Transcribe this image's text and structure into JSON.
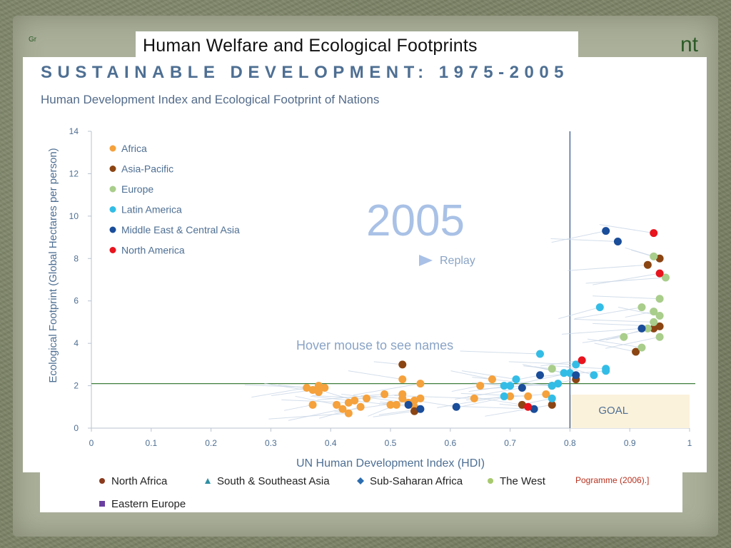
{
  "slide": {
    "title": "Human Welfare and Ecological Footprints",
    "bg_small_text": "Gr",
    "bg_right_fragment": "nt"
  },
  "chart_data": {
    "type": "scatter",
    "title": "SUSTAINABLE DEVELOPMENT: 1975-2005",
    "subtitle": "Human Development Index and Ecological Footprint of Nations",
    "xlabel": "UN Human Development Index (HDI)",
    "ylabel": "Ecological Footprint (Global Hectares per person)",
    "xlim": [
      0,
      1
    ],
    "ylim": [
      0,
      14
    ],
    "x_ticks": [
      "0",
      "0.1",
      "0.2",
      "0.3",
      "0.4",
      "0.5",
      "0.6",
      "0.7",
      "0.8",
      "0.9",
      "1"
    ],
    "y_ticks": [
      "0",
      "2",
      "4",
      "6",
      "8",
      "10",
      "12",
      "14"
    ],
    "year_label": "2005",
    "replay_label": "Replay",
    "hover_hint": "Hover mouse to see names",
    "goal_label": "GOAL",
    "goal_lines": {
      "hdi": 0.8,
      "footprint": 2.1
    },
    "series": [
      {
        "name": "Africa",
        "color": "#f5a13c",
        "points": [
          [
            0.36,
            1.9
          ],
          [
            0.37,
            1.8
          ],
          [
            0.38,
            1.7
          ],
          [
            0.38,
            2.0
          ],
          [
            0.39,
            1.9
          ],
          [
            0.37,
            1.1
          ],
          [
            0.41,
            1.1
          ],
          [
            0.42,
            0.9
          ],
          [
            0.43,
            1.2
          ],
          [
            0.43,
            0.7
          ],
          [
            0.44,
            1.3
          ],
          [
            0.45,
            1.0
          ],
          [
            0.46,
            1.4
          ],
          [
            0.49,
            1.6
          ],
          [
            0.5,
            1.1
          ],
          [
            0.51,
            1.1
          ],
          [
            0.52,
            1.4
          ],
          [
            0.52,
            1.6
          ],
          [
            0.53,
            1.2
          ],
          [
            0.54,
            1.3
          ],
          [
            0.54,
            1.0
          ],
          [
            0.55,
            1.4
          ],
          [
            0.52,
            2.3
          ],
          [
            0.55,
            2.1
          ],
          [
            0.64,
            1.4
          ],
          [
            0.65,
            2.0
          ],
          [
            0.67,
            2.3
          ],
          [
            0.7,
            1.5
          ],
          [
            0.73,
            1.5
          ],
          [
            0.76,
            1.6
          ]
        ]
      },
      {
        "name": "Asia-Pacific",
        "color": "#8b4513",
        "points": [
          [
            0.52,
            3.0
          ],
          [
            0.54,
            0.8
          ],
          [
            0.72,
            1.1
          ],
          [
            0.77,
            1.1
          ],
          [
            0.77,
            2.0
          ],
          [
            0.81,
            2.3
          ],
          [
            0.91,
            3.6
          ],
          [
            0.94,
            4.7
          ],
          [
            0.95,
            4.8
          ],
          [
            0.93,
            7.7
          ],
          [
            0.95,
            8.0
          ]
        ]
      },
      {
        "name": "Europe",
        "color": "#a9cd8b",
        "points": [
          [
            0.77,
            2.8
          ],
          [
            0.89,
            4.3
          ],
          [
            0.92,
            3.8
          ],
          [
            0.92,
            5.7
          ],
          [
            0.94,
            5.0
          ],
          [
            0.94,
            5.5
          ],
          [
            0.95,
            5.3
          ],
          [
            0.95,
            4.3
          ],
          [
            0.95,
            6.1
          ],
          [
            0.96,
            7.1
          ],
          [
            0.94,
            8.1
          ],
          [
            0.93,
            4.7
          ]
        ]
      },
      {
        "name": "Latin America",
        "color": "#33bde6",
        "points": [
          [
            0.69,
            2.0
          ],
          [
            0.7,
            2.0
          ],
          [
            0.71,
            2.3
          ],
          [
            0.69,
            1.5
          ],
          [
            0.75,
            3.5
          ],
          [
            0.77,
            1.4
          ],
          [
            0.79,
            2.6
          ],
          [
            0.8,
            2.6
          ],
          [
            0.81,
            3.0
          ],
          [
            0.78,
            2.1
          ],
          [
            0.84,
            2.5
          ],
          [
            0.85,
            5.7
          ],
          [
            0.86,
            2.8
          ],
          [
            0.86,
            2.7
          ],
          [
            0.77,
            2.0
          ]
        ]
      },
      {
        "name": "Middle East & Central Asia",
        "color": "#1a4d9a",
        "points": [
          [
            0.53,
            1.1
          ],
          [
            0.55,
            0.9
          ],
          [
            0.61,
            1.0
          ],
          [
            0.72,
            1.9
          ],
          [
            0.74,
            0.9
          ],
          [
            0.75,
            2.5
          ],
          [
            0.81,
            2.5
          ],
          [
            0.86,
            9.3
          ],
          [
            0.88,
            8.8
          ],
          [
            0.92,
            4.7
          ]
        ]
      },
      {
        "name": "North America",
        "color": "#e8141e",
        "points": [
          [
            0.73,
            1.0
          ],
          [
            0.82,
            3.2
          ],
          [
            0.94,
            9.2
          ],
          [
            0.95,
            7.3
          ]
        ]
      }
    ],
    "bottom_legend": [
      {
        "name": "North Africa",
        "symbol": "circle",
        "color": "#8b3a1d"
      },
      {
        "name": "South & Southeast Asia",
        "symbol": "triangle",
        "color": "#2f8fa3"
      },
      {
        "name": "Sub-Saharan Africa",
        "symbol": "diamond",
        "color": "#2b6cb0"
      },
      {
        "name": "The West",
        "symbol": "circle",
        "color": "#a7c96e"
      },
      {
        "name": "Eastern Europe",
        "symbol": "square",
        "color": "#6a3fa1"
      }
    ],
    "source_fragment": "Pogramme (2006).]"
  }
}
